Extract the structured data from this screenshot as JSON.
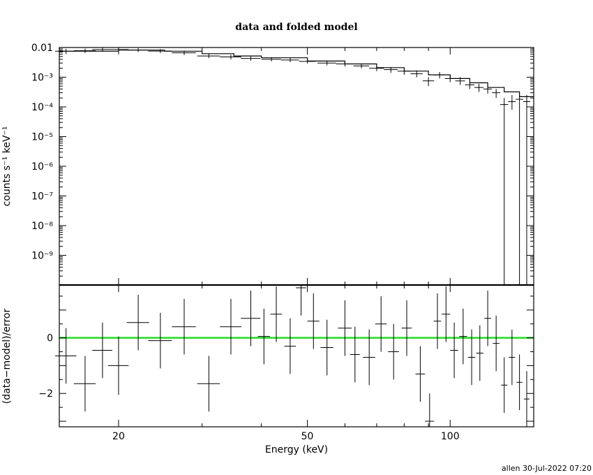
{
  "chart_data": [
    {
      "type": "scatter",
      "title": "data and folded model",
      "xlabel": "",
      "ylabel": "counts s⁻¹ keV⁻¹",
      "xscale": "log",
      "yscale": "log",
      "xlim": [
        15,
        150
      ],
      "ylim": [
        1e-10,
        0.01
      ],
      "yticks": [
        {
          "value": 0.01,
          "label": "0.01"
        },
        {
          "value": 0.001,
          "label": "10⁻³"
        },
        {
          "value": 0.0001,
          "label": "10⁻⁴"
        },
        {
          "value": 1e-05,
          "label": "10⁻⁵"
        },
        {
          "value": 1e-06,
          "label": "10⁻⁶"
        },
        {
          "value": 1e-07,
          "label": "10⁻⁷"
        },
        {
          "value": 1e-08,
          "label": "10⁻⁸"
        },
        {
          "value": 1e-09,
          "label": "10⁻⁹"
        }
      ],
      "data": {
        "x": [
          15.5,
          17.0,
          18.5,
          20.0,
          22.0,
          24.5,
          27.5,
          31.0,
          34.5,
          38.0,
          42.0,
          46.0,
          50.0,
          55.0,
          60.0,
          65.0,
          70.0,
          75.0,
          80.0,
          85.0,
          90.0,
          95.0,
          100.0,
          105.0,
          110.0,
          115.0,
          120.0,
          125.0,
          130.0,
          135.0,
          140.0,
          145.0
        ],
        "xerr": [
          0.8,
          0.9,
          0.9,
          1.0,
          1.2,
          1.4,
          1.6,
          1.7,
          1.8,
          1.8,
          2.0,
          2.0,
          2.0,
          2.5,
          2.5,
          2.5,
          2.5,
          2.5,
          2.5,
          2.5,
          2.5,
          2.5,
          2.5,
          2.5,
          2.5,
          2.5,
          2.5,
          2.5,
          2.5,
          2.5,
          2.5,
          2.5
        ],
        "y": [
          0.0075,
          0.0078,
          0.0085,
          0.0085,
          0.0082,
          0.0076,
          0.0066,
          0.0052,
          0.0048,
          0.0043,
          0.004,
          0.0038,
          0.0034,
          0.003,
          0.0028,
          0.0024,
          0.002,
          0.0018,
          0.0016,
          0.0013,
          0.00075,
          0.0012,
          0.0009,
          0.00075,
          0.00055,
          0.00045,
          0.0004,
          0.0003,
          0.00012,
          0.00015,
          0.00018,
          0.00015
        ],
        "ylo": [
          0.006,
          0.0065,
          0.0072,
          0.0072,
          0.007,
          0.0065,
          0.0056,
          0.0044,
          0.004,
          0.0036,
          0.0034,
          0.0032,
          0.0029,
          0.0025,
          0.0023,
          0.002,
          0.0016,
          0.0014,
          0.0012,
          0.001,
          0.0005,
          0.0009,
          0.00068,
          0.00055,
          0.0004,
          0.00032,
          0.00028,
          0.0002,
          1e-10,
          8e-05,
          1e-10,
          1e-10
        ],
        "yhi": [
          0.009,
          0.0092,
          0.0098,
          0.0098,
          0.0095,
          0.0088,
          0.0077,
          0.0061,
          0.0057,
          0.0051,
          0.0047,
          0.0045,
          0.004,
          0.0036,
          0.0033,
          0.0029,
          0.0025,
          0.0022,
          0.002,
          0.0017,
          0.001,
          0.0015,
          0.0012,
          0.001,
          0.0007,
          0.0006,
          0.00053,
          0.0004,
          0.0002,
          0.00025,
          0.00028,
          0.00025
        ]
      },
      "model": {
        "x": [
          15,
          20,
          25,
          30,
          35,
          40,
          50,
          60,
          70,
          80,
          90,
          100,
          110,
          120,
          130,
          140,
          150
        ],
        "y": [
          0.0075,
          0.0082,
          0.0075,
          0.0062,
          0.0052,
          0.0045,
          0.0035,
          0.0028,
          0.0021,
          0.0016,
          0.0012,
          0.0009,
          0.00065,
          0.00045,
          0.00032,
          0.00022,
          0.00016
        ]
      }
    },
    {
      "type": "scatter",
      "xlabel": "Energy (keV)",
      "ylabel": "(data−model)/error",
      "xscale": "log",
      "yscale": "linear",
      "xlim": [
        15,
        150
      ],
      "ylim": [
        -3.2,
        1.9
      ],
      "xticks": [
        {
          "value": 20,
          "label": "20"
        },
        {
          "value": 50,
          "label": "50"
        },
        {
          "value": 100,
          "label": "100"
        }
      ],
      "yticks": [
        {
          "value": 0,
          "label": "0"
        },
        {
          "value": -2,
          "label": "−2"
        }
      ],
      "zero_line_color": "#22dd22",
      "data": {
        "x": [
          15.5,
          17.0,
          18.5,
          20.0,
          22.0,
          24.5,
          27.5,
          31.0,
          34.5,
          38.0,
          40.5,
          43.0,
          46.0,
          48.5,
          51.5,
          55.0,
          60.0,
          63.0,
          67.5,
          71.5,
          76.0,
          81.0,
          86.5,
          90.5,
          94.0,
          98.0,
          102.0,
          106.5,
          111.0,
          115.5,
          120.0,
          125.0,
          130.0,
          135.0,
          140.0,
          145.0
        ],
        "xerr": [
          0.8,
          0.9,
          0.9,
          1.0,
          1.2,
          1.4,
          1.6,
          1.7,
          1.8,
          1.8,
          1.2,
          1.2,
          1.3,
          1.2,
          1.5,
          1.7,
          2.0,
          1.5,
          2.0,
          2.0,
          2.0,
          2.0,
          2.0,
          2.0,
          1.7,
          2.0,
          2.0,
          2.0,
          2.0,
          2.0,
          2.0,
          2.0,
          2.0,
          2.0,
          2.0,
          2.0
        ],
        "y": [
          -0.65,
          -1.65,
          -0.45,
          -1.0,
          0.55,
          -0.1,
          0.4,
          -1.65,
          0.4,
          0.7,
          0.05,
          0.85,
          -0.3,
          1.8,
          0.6,
          -0.35,
          0.35,
          -0.6,
          -0.7,
          0.5,
          -0.5,
          0.35,
          -1.3,
          -3.0,
          0.6,
          0.85,
          -0.45,
          0.05,
          -0.7,
          -0.55,
          0.7,
          -0.2,
          -1.7,
          -0.7,
          -1.6,
          -2.2
        ],
        "err": [
          1.0,
          1.0,
          1.0,
          1.05,
          1.0,
          1.0,
          1.0,
          1.0,
          1.0,
          1.0,
          1.0,
          1.0,
          1.0,
          1.0,
          1.0,
          1.0,
          1.0,
          1.0,
          1.0,
          1.0,
          1.0,
          1.0,
          1.0,
          1.0,
          1.0,
          1.0,
          1.0,
          1.0,
          1.0,
          1.0,
          1.0,
          1.0,
          1.0,
          1.0,
          1.0,
          1.0
        ]
      }
    }
  ],
  "footer": "allen 30-Jul-2022 07:20"
}
